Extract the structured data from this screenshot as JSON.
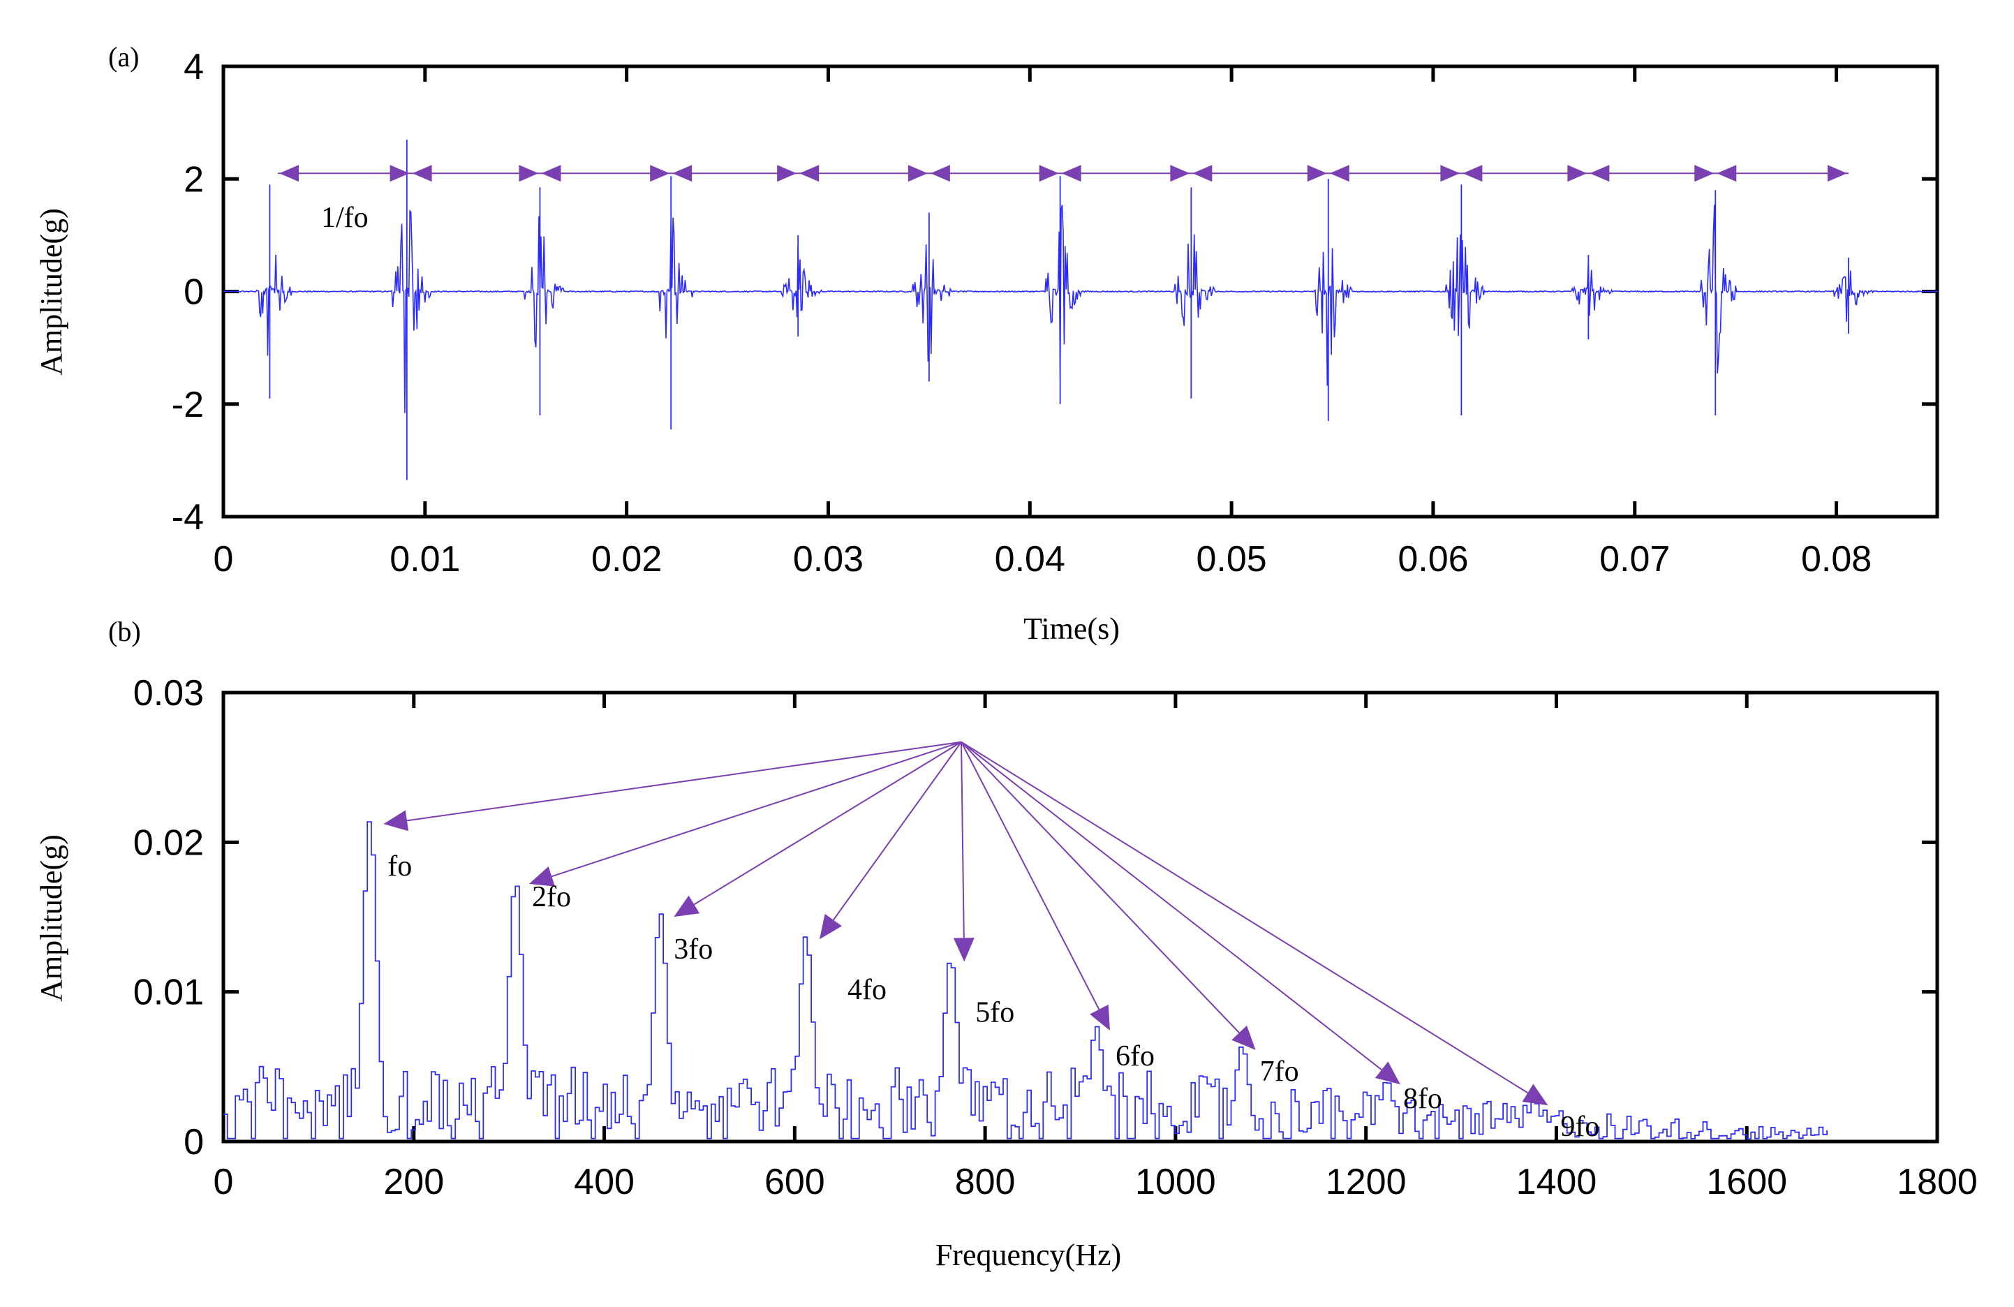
{
  "colors": {
    "signal": "#2b2bff",
    "annotation": "#7a3fb0",
    "axis": "#000000"
  },
  "chart_data": [
    {
      "panel": "(a)",
      "type": "line",
      "xlabel": "Time(s)",
      "ylabel": "Amplitude(g)",
      "xlim": [
        0,
        0.085
      ],
      "ylim": [
        -4,
        4
      ],
      "xticks": [
        0,
        0.01,
        0.02,
        0.03,
        0.04,
        0.05,
        0.06,
        0.07,
        0.08
      ],
      "xtick_labels": [
        "0",
        "0.01",
        "0.02",
        "0.03",
        "0.04",
        "0.05",
        "0.06",
        "0.07",
        "0.08"
      ],
      "yticks": [
        -4,
        -2,
        0,
        2,
        4
      ],
      "ytick_labels": [
        "-4",
        "-2",
        "0",
        "2",
        "4"
      ],
      "impulses": [
        {
          "t": 0.0023,
          "pos": 1.9,
          "neg": -1.9
        },
        {
          "t": 0.0091,
          "pos": 2.7,
          "neg": -3.35
        },
        {
          "t": 0.0157,
          "pos": 1.85,
          "neg": -2.2
        },
        {
          "t": 0.0222,
          "pos": 2.05,
          "neg": -2.45
        },
        {
          "t": 0.0285,
          "pos": 1.0,
          "neg": -0.8
        },
        {
          "t": 0.035,
          "pos": 1.4,
          "neg": -1.6
        },
        {
          "t": 0.0415,
          "pos": 2.05,
          "neg": -2.0
        },
        {
          "t": 0.048,
          "pos": 1.85,
          "neg": -1.9
        },
        {
          "t": 0.0548,
          "pos": 2.0,
          "neg": -2.3
        },
        {
          "t": 0.0614,
          "pos": 1.9,
          "neg": -2.2
        },
        {
          "t": 0.0677,
          "pos": 0.65,
          "neg": -0.85
        },
        {
          "t": 0.074,
          "pos": 1.8,
          "neg": -2.2
        },
        {
          "t": 0.0806,
          "pos": 0.6,
          "neg": -0.75
        }
      ],
      "period_markers": [
        0.0027,
        0.0093,
        0.0157,
        0.0222,
        0.0285,
        0.035,
        0.0415,
        0.048,
        0.0548,
        0.0614,
        0.0677,
        0.074,
        0.0806
      ],
      "period_marker_y": 2.1,
      "annotation": "1/fo"
    },
    {
      "panel": "(b)",
      "type": "line",
      "xlabel": "Frequency(Hz)",
      "ylabel": "Amplitude(g)",
      "xlim": [
        0,
        1800
      ],
      "ylim": [
        0,
        0.03
      ],
      "xticks": [
        0,
        200,
        400,
        600,
        800,
        1000,
        1200,
        1400,
        1600,
        1800
      ],
      "xtick_labels": [
        "0",
        "200",
        "400",
        "600",
        "800",
        "1000",
        "1200",
        "1400",
        "1600",
        "1800"
      ],
      "yticks": [
        0,
        0.01,
        0.02,
        0.03
      ],
      "ytick_labels": [
        "0",
        "0.01",
        "0.02",
        "0.03"
      ],
      "spectrum_max_freq": 1685,
      "peaks": [
        {
          "f": 152,
          "amp": 0.0215,
          "label": "fo"
        },
        {
          "f": 305,
          "amp": 0.0175,
          "label": "2fo"
        },
        {
          "f": 457,
          "amp": 0.0153,
          "label": "3fo"
        },
        {
          "f": 610,
          "amp": 0.0138,
          "label": "4fo"
        },
        {
          "f": 762,
          "amp": 0.0123,
          "label": "5fo"
        },
        {
          "f": 915,
          "amp": 0.0077,
          "label": "6fo"
        },
        {
          "f": 1068,
          "amp": 0.0064,
          "label": "7fo"
        },
        {
          "f": 1220,
          "amp": 0.0041,
          "label": "8fo"
        },
        {
          "f": 1375,
          "amp": 0.0027,
          "label": "9fo"
        }
      ],
      "arrow_origin": {
        "f": 775,
        "amp": 0.0267
      }
    }
  ]
}
